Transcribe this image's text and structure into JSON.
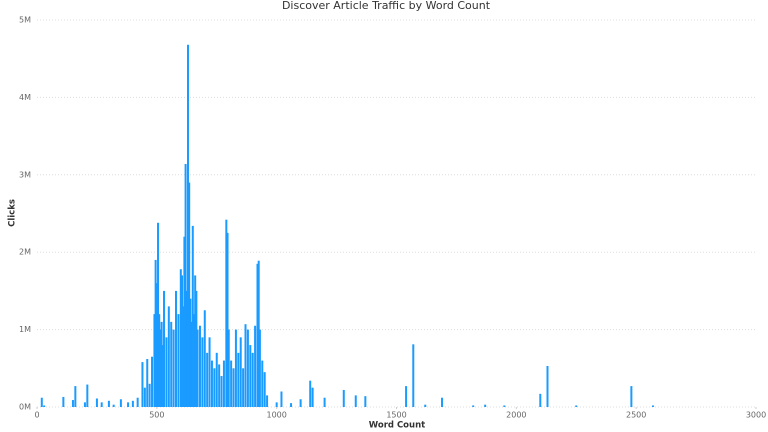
{
  "chart_data": {
    "type": "bar",
    "title": "Discover Article Traffic by Word Count",
    "x_label": "Word Count",
    "y_label": "Clicks",
    "color": "#1a9bff",
    "grid": true,
    "xlim": [
      0,
      3000
    ],
    "xticks": [
      0,
      500,
      1000,
      1500,
      2000,
      2500,
      3000
    ],
    "ylim": [
      0,
      5000000
    ],
    "yticks": [
      {
        "value": 0,
        "label": "0M"
      },
      {
        "value": 1000000,
        "label": "1M"
      },
      {
        "value": 2000000,
        "label": "2M"
      },
      {
        "value": 3000000,
        "label": "3M"
      },
      {
        "value": 4000000,
        "label": "4M"
      },
      {
        "value": 5000000,
        "label": "5M"
      }
    ],
    "x": [
      20,
      30,
      110,
      150,
      160,
      200,
      210,
      250,
      270,
      300,
      320,
      350,
      380,
      400,
      420,
      440,
      450,
      460,
      470,
      480,
      490,
      495,
      500,
      505,
      510,
      515,
      520,
      525,
      530,
      540,
      550,
      560,
      570,
      580,
      590,
      600,
      605,
      610,
      615,
      620,
      625,
      630,
      635,
      640,
      645,
      650,
      655,
      660,
      665,
      670,
      680,
      690,
      700,
      710,
      720,
      730,
      740,
      750,
      760,
      770,
      780,
      790,
      795,
      800,
      810,
      820,
      830,
      840,
      850,
      860,
      870,
      880,
      890,
      900,
      910,
      920,
      925,
      930,
      940,
      950,
      960,
      1000,
      1020,
      1060,
      1100,
      1140,
      1150,
      1200,
      1280,
      1330,
      1370,
      1540,
      1570,
      1620,
      1690,
      1820,
      1870,
      1950,
      2100,
      2130,
      2250,
      2480,
      2570
    ],
    "values": [
      120000,
      20000,
      130000,
      90000,
      270000,
      60000,
      290000,
      110000,
      60000,
      80000,
      30000,
      100000,
      60000,
      80000,
      120000,
      580000,
      250000,
      620000,
      300000,
      650000,
      1200000,
      1900000,
      1600000,
      2380000,
      1200000,
      1000000,
      1100000,
      800000,
      1500000,
      900000,
      1300000,
      1100000,
      1000000,
      1500000,
      1200000,
      1780000,
      1700000,
      1300000,
      2200000,
      3140000,
      1500000,
      4680000,
      2900000,
      1400000,
      1100000,
      2340000,
      1200000,
      1700000,
      1500000,
      1000000,
      1050000,
      900000,
      1250000,
      700000,
      900000,
      600000,
      500000,
      700000,
      550000,
      400000,
      600000,
      2420000,
      2250000,
      1000000,
      600000,
      500000,
      1000000,
      700000,
      900000,
      500000,
      1070000,
      1000000,
      800000,
      700000,
      1050000,
      1850000,
      1890000,
      1000000,
      600000,
      450000,
      150000,
      60000,
      200000,
      50000,
      100000,
      340000,
      250000,
      120000,
      220000,
      150000,
      140000,
      270000,
      810000,
      30000,
      120000,
      20000,
      30000,
      20000,
      170000,
      530000,
      20000,
      270000,
      20000
    ]
  }
}
